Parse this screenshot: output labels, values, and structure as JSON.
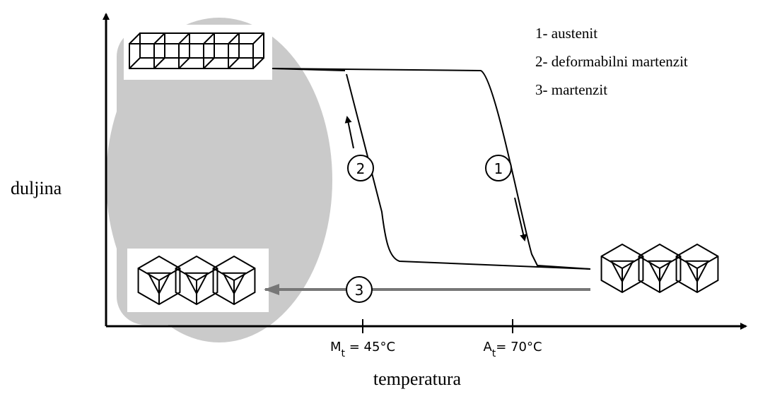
{
  "axes": {
    "y_label": "duljina",
    "x_label": "temperatura"
  },
  "legend": [
    "1- austenit",
    "2- deformabilni martenzit",
    "3- martenzit"
  ],
  "ticks": [
    {
      "symbol": "M",
      "subscript": "t",
      "text": " = 45°C"
    },
    {
      "symbol": "A",
      "subscript": "t",
      "text": "= 70°C"
    }
  ],
  "markers": [
    "1",
    "2",
    "3"
  ]
}
